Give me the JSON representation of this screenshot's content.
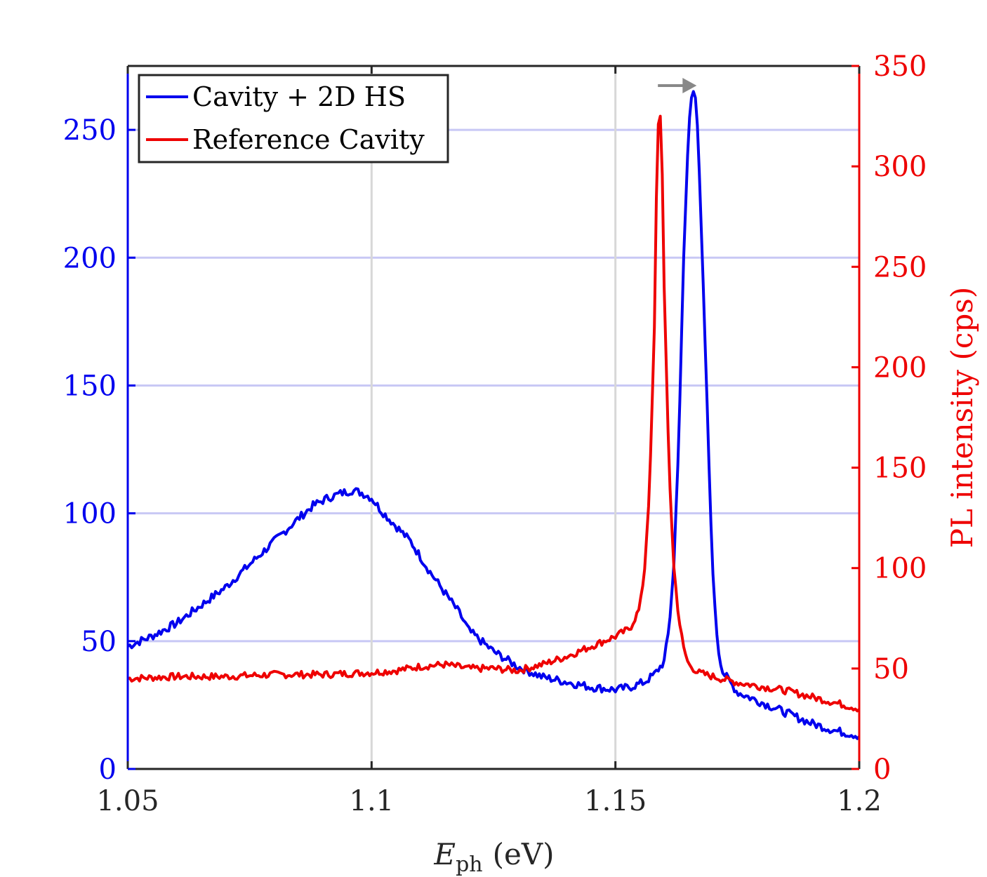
{
  "chart_data": {
    "type": "line",
    "xlabel_main": "E",
    "xlabel_sub": "ph",
    "xlabel_unit": "(eV)",
    "ylabel_right": "PL intensity (cps)",
    "xlim": [
      1.05,
      1.2
    ],
    "ylim_left": [
      0,
      275
    ],
    "ylim_right": [
      0,
      350
    ],
    "x_ticks": [
      1.05,
      1.1,
      1.15,
      1.2
    ],
    "x_tick_labels": [
      "1.05",
      "1.1",
      "1.15",
      "1.2"
    ],
    "y_left_ticks": [
      0,
      50,
      100,
      150,
      200,
      250
    ],
    "y_left_tick_labels": [
      "0",
      "50",
      "100",
      "150",
      "200",
      "250"
    ],
    "y_right_ticks": [
      0,
      50,
      100,
      150,
      200,
      250,
      300,
      350
    ],
    "y_right_tick_labels": [
      "0",
      "50",
      "100",
      "150",
      "200",
      "250",
      "300",
      "350"
    ],
    "grid": true,
    "legend_position": "top-left",
    "annotation": "arrow from reference cavity peak to cavity + 2D HS peak",
    "colors": {
      "left_axis": "#0000ee",
      "right_axis": "#ee0000",
      "grid_h": "#c8c8f5",
      "grid_v": "#d8d8d8",
      "arrow": "#888888"
    },
    "series": [
      {
        "name": "Cavity + 2D HS",
        "axis": "left",
        "color": "#0000ee",
        "x": [
          1.05,
          1.055,
          1.06,
          1.065,
          1.07,
          1.075,
          1.08,
          1.085,
          1.088,
          1.091,
          1.094,
          1.096,
          1.098,
          1.1,
          1.102,
          1.105,
          1.108,
          1.11,
          1.112,
          1.115,
          1.118,
          1.12,
          1.125,
          1.13,
          1.135,
          1.14,
          1.145,
          1.15,
          1.153,
          1.156,
          1.158,
          1.16,
          1.161,
          1.162,
          1.163,
          1.164,
          1.165,
          1.1655,
          1.166,
          1.1665,
          1.167,
          1.168,
          1.169,
          1.17,
          1.171,
          1.172,
          1.175,
          1.18,
          1.185,
          1.19,
          1.195,
          1.2
        ],
        "y": [
          48,
          52,
          57,
          64,
          71,
          80,
          89,
          98,
          103,
          106,
          108,
          109,
          108,
          106,
          101,
          95,
          89,
          83,
          77,
          69,
          61,
          54,
          46,
          40,
          36,
          34,
          32,
          31,
          32,
          34,
          37,
          42,
          55,
          80,
          130,
          200,
          250,
          262,
          265,
          262,
          245,
          190,
          130,
          75,
          48,
          38,
          30,
          26,
          22,
          18,
          15,
          13
        ]
      },
      {
        "name": "Reference Cavity",
        "axis": "right",
        "color": "#ee0000",
        "x": [
          1.05,
          1.06,
          1.07,
          1.08,
          1.09,
          1.1,
          1.105,
          1.11,
          1.115,
          1.12,
          1.125,
          1.13,
          1.135,
          1.14,
          1.145,
          1.15,
          1.153,
          1.155,
          1.156,
          1.157,
          1.158,
          1.1585,
          1.159,
          1.1595,
          1.16,
          1.161,
          1.162,
          1.163,
          1.164,
          1.165,
          1.167,
          1.17,
          1.175,
          1.18,
          1.185,
          1.19,
          1.195,
          1.2
        ],
        "y": [
          45,
          46,
          46,
          47,
          47,
          48,
          49,
          51,
          52,
          50,
          50,
          49,
          52,
          56,
          61,
          66,
          70,
          80,
          100,
          140,
          220,
          300,
          335,
          310,
          240,
          150,
          100,
          75,
          60,
          52,
          48,
          46,
          43,
          41,
          39,
          36,
          33,
          30
        ]
      }
    ]
  }
}
